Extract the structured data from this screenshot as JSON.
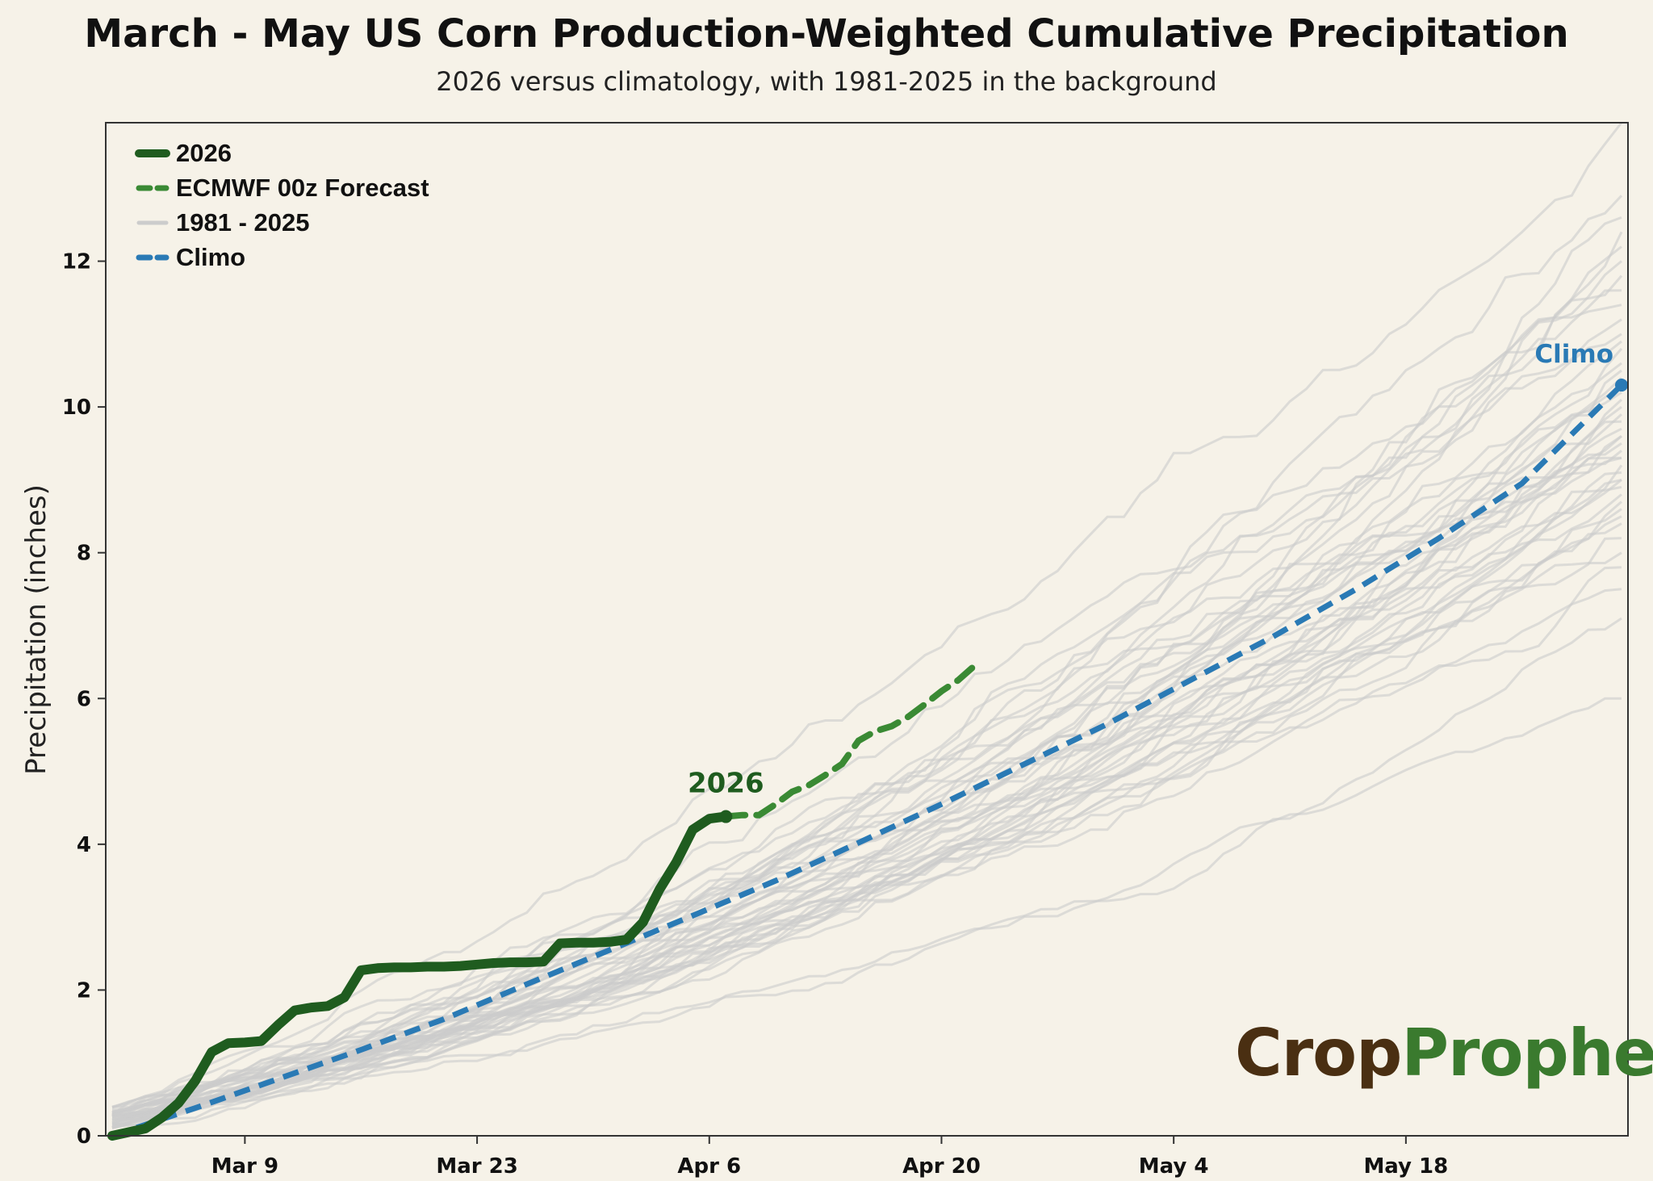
{
  "title": "March - May US Corn Production-Weighted Cumulative Precipitation",
  "subtitle": "2026 versus climatology, with 1981-2025 in the background",
  "logo": {
    "part1": "Crop",
    "part2": "Prophet"
  },
  "chart_data": {
    "type": "line",
    "title": "March - May US Corn Production-Weighted Cumulative Precipitation",
    "subtitle": "2026 versus climatology, with 1981-2025 in the background",
    "xlabel": "",
    "ylabel": "Precipitation (inches)",
    "x_units": "days since Mar 1",
    "xlim": [
      0,
      91
    ],
    "ylim": [
      0,
      13.9
    ],
    "xticks": [
      {
        "x": 8,
        "label": "Mar 9"
      },
      {
        "x": 22,
        "label": "Mar 23"
      },
      {
        "x": 36,
        "label": "Apr 6"
      },
      {
        "x": 50,
        "label": "Apr 20"
      },
      {
        "x": 64,
        "label": "May 4"
      },
      {
        "x": 78,
        "label": "May 18"
      }
    ],
    "yticks": [
      0,
      2,
      4,
      6,
      8,
      10,
      12
    ],
    "grid": false,
    "legend": {
      "position": "top-left",
      "entries": [
        "2026",
        "ECMWF 00z Forecast",
        "1981 - 2025",
        "Climo"
      ]
    },
    "annotations": [
      {
        "text": "2026",
        "series": "2026"
      },
      {
        "text": "Climo",
        "series": "Climo"
      }
    ],
    "colors": {
      "obs": "#1f5c1f",
      "forecast": "#3a8a34",
      "history": "#cccccc",
      "climo": "#2a7ab5"
    },
    "series": [
      {
        "name": "2026",
        "style": "solid",
        "x": [
          0,
          1,
          2,
          3,
          4,
          5,
          6,
          7,
          8,
          9,
          10,
          11,
          12,
          13,
          14,
          15,
          16,
          17,
          18,
          19,
          20,
          21,
          22,
          23,
          24,
          25,
          26,
          27,
          28,
          29,
          30,
          31,
          32,
          33,
          34,
          35,
          36,
          37
        ],
        "y": [
          0,
          0.05,
          0.1,
          0.25,
          0.45,
          0.75,
          1.15,
          1.27,
          1.28,
          1.3,
          1.52,
          1.72,
          1.76,
          1.78,
          1.9,
          2.27,
          2.3,
          2.31,
          2.31,
          2.32,
          2.32,
          2.33,
          2.35,
          2.37,
          2.38,
          2.38,
          2.39,
          2.64,
          2.65,
          2.65,
          2.66,
          2.69,
          2.93,
          3.38,
          3.75,
          4.2,
          4.35,
          4.38
        ]
      },
      {
        "name": "ECMWF 00z Forecast",
        "style": "dashed",
        "x": [
          37,
          38,
          39,
          40,
          41,
          42,
          43,
          44,
          45,
          46,
          47,
          48,
          49,
          50,
          51,
          52
        ],
        "y": [
          4.38,
          4.4,
          4.4,
          4.55,
          4.72,
          4.81,
          4.95,
          5.1,
          5.42,
          5.55,
          5.62,
          5.75,
          5.92,
          6.1,
          6.25,
          6.45
        ]
      },
      {
        "name": "Climo",
        "style": "dashed",
        "x": [
          0,
          5,
          10,
          15,
          20,
          25,
          30,
          35,
          40,
          45,
          50,
          55,
          60,
          65,
          70,
          75,
          80,
          85,
          91
        ],
        "y": [
          0,
          0.38,
          0.78,
          1.18,
          1.6,
          2.08,
          2.55,
          3.02,
          3.5,
          4.02,
          4.55,
          5.1,
          5.65,
          6.25,
          6.85,
          7.5,
          8.2,
          8.95,
          10.3
        ]
      },
      {
        "name": "1981 - 2025",
        "style": "thin",
        "members": 45,
        "start": 0,
        "end_values": [
          6.0,
          7.1,
          7.5,
          7.8,
          8.0,
          8.2,
          8.4,
          8.6,
          8.7,
          8.8,
          8.9,
          9.0,
          9.1,
          9.2,
          9.3,
          9.4,
          9.5,
          9.6,
          9.7,
          9.8,
          9.9,
          10.0,
          10.1,
          10.2,
          10.3,
          10.5,
          10.6,
          10.8,
          11.0,
          11.2,
          11.4,
          11.6,
          11.8,
          12.0,
          12.2,
          12.4,
          12.6,
          12.9,
          13.9,
          9.3,
          9.0,
          10.4,
          8.5,
          9.6,
          10.9
        ]
      }
    ]
  }
}
